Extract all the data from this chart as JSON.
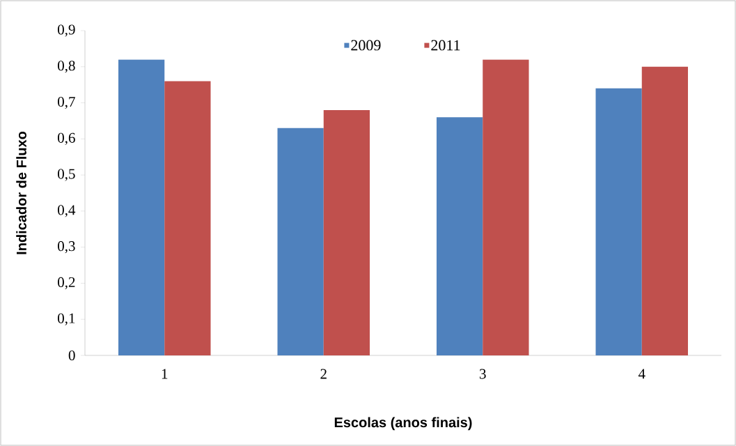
{
  "chart_data": {
    "type": "bar",
    "xlabel": "Escolas (anos finais)",
    "ylabel": "Indicador de Fluxo",
    "categories": [
      "1",
      "2",
      "3",
      "4"
    ],
    "series": [
      {
        "name": "2009",
        "color": "#4f81bd",
        "values": [
          0.82,
          0.63,
          0.66,
          0.74
        ]
      },
      {
        "name": "2011",
        "color": "#c0504d",
        "values": [
          0.76,
          0.68,
          0.82,
          0.8
        ]
      }
    ],
    "ylim": [
      0,
      0.9
    ],
    "yticks": [
      {
        "value": 0,
        "label": "0"
      },
      {
        "value": 0.1,
        "label": "0,1"
      },
      {
        "value": 0.2,
        "label": "0,2"
      },
      {
        "value": 0.3,
        "label": "0,3"
      },
      {
        "value": 0.4,
        "label": "0,4"
      },
      {
        "value": 0.5,
        "label": "0,5"
      },
      {
        "value": 0.6,
        "label": "0,6"
      },
      {
        "value": 0.7,
        "label": "0,7"
      },
      {
        "value": 0.8,
        "label": "0,8"
      },
      {
        "value": 0.9,
        "label": "0,9"
      }
    ],
    "grid": false,
    "legend": "top"
  }
}
